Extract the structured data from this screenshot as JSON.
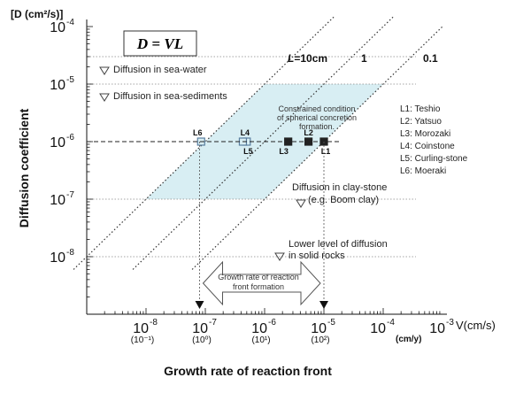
{
  "chart_data": {
    "type": "scatter",
    "title": "",
    "ylabel": "Diffusion coefficient",
    "yunit": "[D (cm²/s)]",
    "xlabel": "Growth rate of reaction front",
    "xunit_label": "V(cm/s)",
    "xunit2_label": "(cm/y)",
    "x_scale": "log",
    "y_scale": "log",
    "xlim": [
      1e-09,
      0.001
    ],
    "ylim": [
      1e-09,
      0.0001
    ],
    "x_ticks": [
      {
        "value": 1e-08,
        "base": "10",
        "exp": "-8",
        "secondary": "(10⁻¹)"
      },
      {
        "value": 1e-07,
        "base": "10",
        "exp": "-7",
        "secondary": "(10⁰)"
      },
      {
        "value": 1e-06,
        "base": "10",
        "exp": "-6",
        "secondary": "(10¹)"
      },
      {
        "value": 1e-05,
        "base": "10",
        "exp": "-5",
        "secondary": "(10²)"
      },
      {
        "value": 0.0001,
        "base": "10",
        "exp": "-4",
        "secondary": ""
      },
      {
        "value": 0.001,
        "base": "10",
        "exp": "-3",
        "secondary": ""
      }
    ],
    "y_ticks": [
      {
        "value": 0.0001,
        "base": "10",
        "exp": "-4"
      },
      {
        "value": 1e-05,
        "base": "10",
        "exp": "-5"
      },
      {
        "value": 1e-06,
        "base": "10",
        "exp": "-6"
      },
      {
        "value": 1e-07,
        "base": "10",
        "exp": "-7"
      },
      {
        "value": 1e-08,
        "base": "10",
        "exp": "-8"
      }
    ],
    "formula": "D = VL",
    "lines": [
      {
        "label": "L=10cm",
        "L_cm": 10
      },
      {
        "label": "1",
        "L_cm": 1
      },
      {
        "label": "0.1",
        "L_cm": 0.1
      }
    ],
    "reference_levels": [
      {
        "label": "Diffusion in sea-water",
        "y": 3e-05
      },
      {
        "label": "Diffusion in sea-sediments",
        "y": 1e-05
      },
      {
        "label": "Diffusion in clay-stone",
        "label2": "(e.g. Boom clay)",
        "y": 1e-07
      },
      {
        "label": "Lower level of diffusion",
        "label2": "in solid rocks",
        "y": 1e-08
      }
    ],
    "constrained_region": {
      "label": [
        "Constrained condition",
        "of spherical concretion",
        "formation."
      ],
      "y_range": [
        1e-07,
        1e-05
      ],
      "L_range_cm": [
        0.1,
        10
      ]
    },
    "growth_rate_range": {
      "label": [
        "Growth rate of reaction",
        "front formation"
      ],
      "x_range": [
        8e-08,
        1e-05
      ]
    },
    "series": [
      {
        "name": "L1: Teshio",
        "tag": "L1",
        "x": 1e-05,
        "y": 1e-06,
        "filled": true
      },
      {
        "name": "L2: Yatsuo",
        "tag": "L2",
        "x": 5.5e-06,
        "y": 1e-06,
        "filled": true
      },
      {
        "name": "L3: Morozaki",
        "tag": "L3",
        "x": 2.5e-06,
        "y": 1e-06,
        "filled": true
      },
      {
        "name": "L4: Coinstone",
        "tag": "L4",
        "x": 5e-07,
        "y": 1e-06,
        "filled": false
      },
      {
        "name": "L5: Curling-stone",
        "tag": "L5",
        "x": 4.3e-07,
        "y": 1e-06,
        "filled": false
      },
      {
        "name": "L6: Moeraki",
        "tag": "L6",
        "x": 8.5e-08,
        "y": 1e-06,
        "filled": false
      }
    ],
    "horizontal_dashed_y": 1e-06,
    "legend_position": "right"
  }
}
